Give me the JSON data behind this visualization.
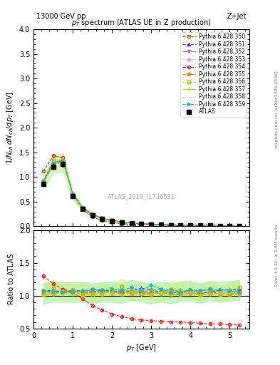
{
  "title_top": "13000 GeV pp",
  "title_right": "Z+Jet",
  "plot_title": "p_T spectrum (ATLAS UE in Z production)",
  "ylabel_main": "1/N_{ch} dN_{ch}/dp_T [GeV]",
  "ylabel_ratio": "Ratio to ATLAS",
  "xlabel": "p_T [GeV]",
  "watermark": "ATLAS_2019_I1736531",
  "right_label": "mcplots.cern.ch [arXiv:1306.3436]",
  "rivet_label": "Rivet 3.1.10, ≥ 2.8M events",
  "xlim": [
    0,
    5.5
  ],
  "ylim_main": [
    0,
    4.0
  ],
  "ylim_ratio": [
    0.5,
    2.0
  ],
  "series": [
    {
      "label": "ATLAS",
      "color": "#000000",
      "marker": "s",
      "markersize": 4,
      "linestyle": "none",
      "filled": true,
      "zorder": 10
    },
    {
      "label": "Pythia 6.428 350",
      "color": "#808000",
      "marker": "s",
      "markersize": 4,
      "linestyle": "--",
      "filled": false,
      "zorder": 5
    },
    {
      "label": "Pythia 6.428 351",
      "color": "#0000ff",
      "marker": "^",
      "markersize": 4,
      "linestyle": "--",
      "filled": true,
      "zorder": 5
    },
    {
      "label": "Pythia 6.428 352",
      "color": "#8080ff",
      "marker": "v",
      "markersize": 4,
      "linestyle": "-.",
      "filled": true,
      "zorder": 5
    },
    {
      "label": "Pythia 6.428 353",
      "color": "#ff80ff",
      "marker": "^",
      "markersize": 4,
      "linestyle": ":",
      "filled": false,
      "zorder": 5
    },
    {
      "label": "Pythia 6.428 354",
      "color": "#ff0000",
      "marker": "o",
      "markersize": 4,
      "linestyle": "--",
      "filled": false,
      "zorder": 5
    },
    {
      "label": "Pythia 6.428 355",
      "color": "#ff8000",
      "marker": "*",
      "markersize": 5,
      "linestyle": "--",
      "filled": true,
      "zorder": 5
    },
    {
      "label": "Pythia 6.428 356",
      "color": "#80ff00",
      "marker": "s",
      "markersize": 4,
      "linestyle": ":",
      "filled": false,
      "zorder": 5
    },
    {
      "label": "Pythia 6.428 357",
      "color": "#ffff00",
      "marker": "+",
      "markersize": 4,
      "linestyle": "-.",
      "filled": true,
      "zorder": 5
    },
    {
      "label": "Pythia 6.428 358",
      "color": "#80ff80",
      "marker": "none",
      "markersize": 4,
      "linestyle": ":",
      "filled": false,
      "zorder": 5
    },
    {
      "label": "Pythia 6.428 359",
      "color": "#00ffff",
      "marker": ">",
      "markersize": 4,
      "linestyle": "--",
      "filled": true,
      "zorder": 5
    }
  ],
  "band_color_358": "#90ee90",
  "band_color_356": "#c8f080",
  "band_alpha": 0.5
}
